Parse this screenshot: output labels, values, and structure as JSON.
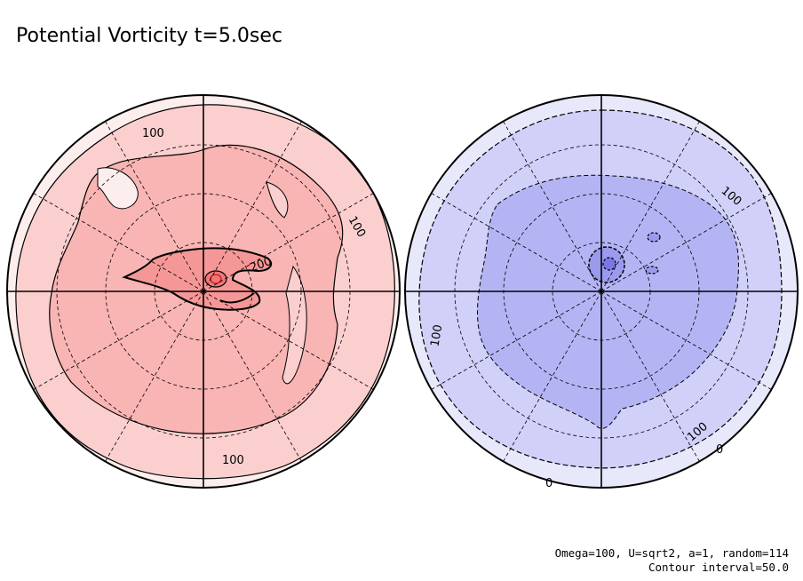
{
  "title": "Potential Vorticity t=5.0sec",
  "footer": {
    "line1": "Omega=100, U=sqrt2, a=1, random=114",
    "line2": "Contour interval=50.0"
  },
  "colors": {
    "north_level0": "#fdeeee",
    "north_level1": "#fccfcf",
    "north_level2": "#f9b4b4",
    "north_level3": "#f59797",
    "north_level4": "#ee7777",
    "south_level0": "#e8e8fb",
    "south_level1": "#d0d0f9",
    "south_level2": "#b4b4f5",
    "south_level3": "#9a9aef",
    "south_level4": "#7777e6"
  },
  "north_labels": {
    "top": "100",
    "right": "100",
    "bottom": "100",
    "center": "200"
  },
  "south_labels": {
    "right_upper": "100",
    "left": "100",
    "right_lower": "100",
    "bottom_right": "0",
    "bottom": "0"
  }
}
